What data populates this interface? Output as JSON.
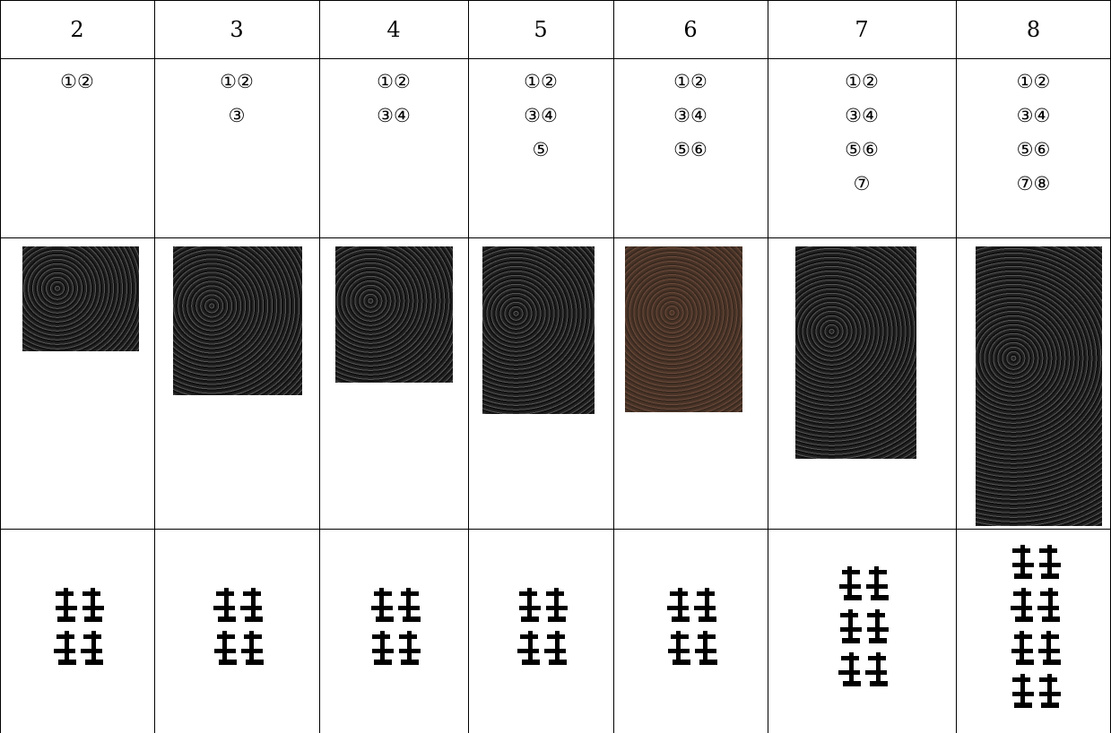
{
  "table": {
    "header": [
      "2",
      "3",
      "4",
      "5",
      "6",
      "7",
      "8"
    ],
    "numbers": [
      [
        "①②"
      ],
      [
        "①②",
        "③"
      ],
      [
        "①②",
        "③④"
      ],
      [
        "①②",
        "③④",
        "⑤"
      ],
      [
        "①②",
        "③④",
        "⑤⑥"
      ],
      [
        "①②",
        "③④",
        "⑤⑥",
        "⑦"
      ],
      [
        "①②",
        "③④",
        "⑤⑥",
        "⑦⑧"
      ]
    ]
  }
}
